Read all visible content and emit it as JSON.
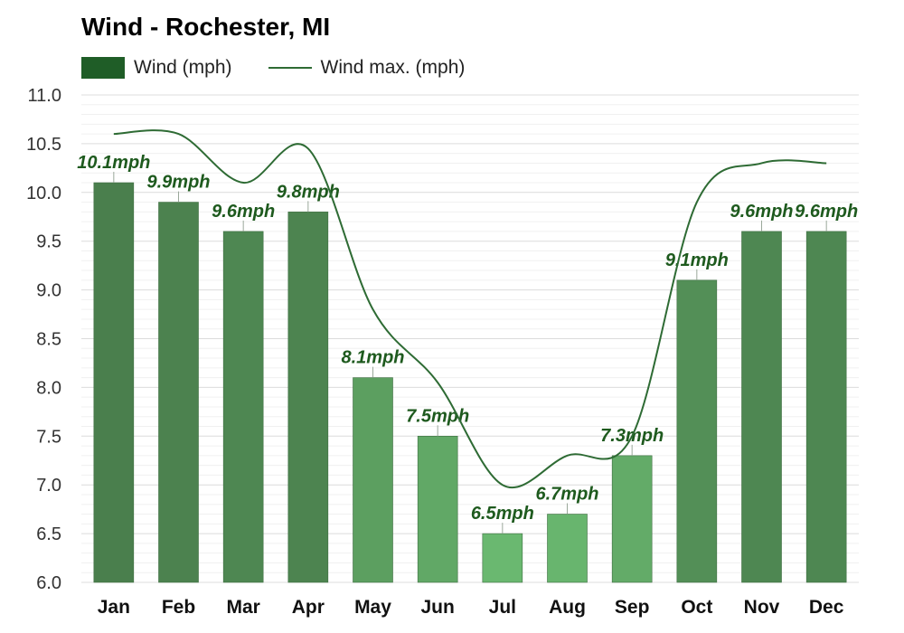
{
  "chart_data": {
    "type": "bar",
    "title": "Wind - Rochester, MI",
    "categories": [
      "Jan",
      "Feb",
      "Mar",
      "Apr",
      "May",
      "Jun",
      "Jul",
      "Aug",
      "Sep",
      "Oct",
      "Nov",
      "Dec"
    ],
    "series": [
      {
        "name": "Wind (mph)",
        "type": "bar",
        "values": [
          10.1,
          9.9,
          9.6,
          9.8,
          8.1,
          7.5,
          6.5,
          6.7,
          7.3,
          9.1,
          9.6,
          9.6
        ],
        "labels": [
          "10.1mph",
          "9.9mph",
          "9.6mph",
          "9.8mph",
          "8.1mph",
          "7.5mph",
          "6.5mph",
          "6.7mph",
          "7.3mph",
          "9.1mph",
          "9.6mph",
          "9.6mph"
        ]
      },
      {
        "name": "Wind max. (mph)",
        "type": "line",
        "values": [
          10.6,
          10.6,
          10.1,
          10.45,
          8.8,
          8.05,
          7.0,
          7.3,
          7.5,
          9.9,
          10.3,
          10.3
        ]
      }
    ],
    "ylim": [
      6.0,
      11.0
    ],
    "yticks": [
      "6.0",
      "6.5",
      "7.0",
      "7.5",
      "8.0",
      "8.5",
      "9.0",
      "9.5",
      "10.0",
      "10.5",
      "11.0"
    ],
    "grid": true,
    "legend": "top-left"
  },
  "colors": {
    "bar_dark": "#4a7f4d",
    "bar_light": "#6ab870",
    "line": "#2e6b34",
    "label": "#1e5a1e"
  }
}
